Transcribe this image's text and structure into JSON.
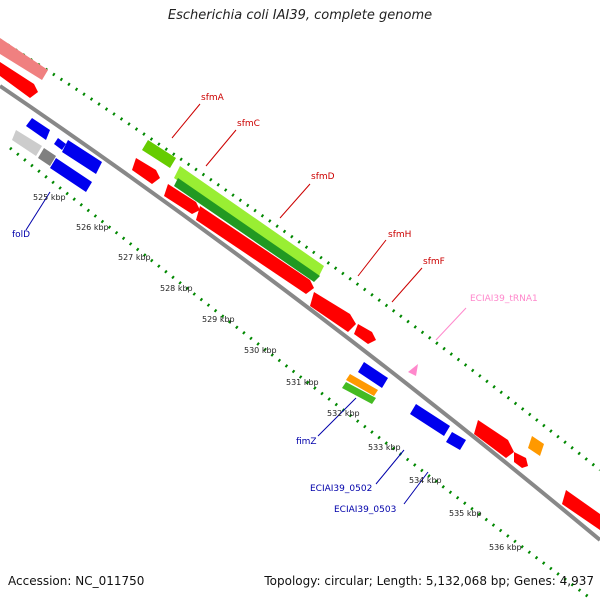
{
  "title": "Escherichia coli IAI39, complete genome",
  "accession": "Accession: NC_011750",
  "summary": "Topology: circular; Length: 5,132,068 bp; Genes: 4,937",
  "colors": {
    "cds": "#ff0000",
    "cds_blue": "#0000ee",
    "highlight_green": "#66cc00",
    "orange": "#ff9900",
    "trna_pink": "#ff88cc",
    "backbone": "#808080",
    "ticks": "#008800",
    "label_red": "#cc0000",
    "label_blue": "#0000aa"
  },
  "ticks": [
    "525 kbp",
    "526 kbp",
    "527 kbp",
    "528 kbp",
    "529 kbp",
    "530 kbp",
    "531 kbp",
    "532 kbp",
    "533 kbp",
    "534 kbp",
    "535 kbp",
    "536 kbp"
  ],
  "gene_labels": [
    {
      "name": "sfmA",
      "color": "label_red"
    },
    {
      "name": "sfmC",
      "color": "label_red"
    },
    {
      "name": "sfmD",
      "color": "label_red"
    },
    {
      "name": "sfmH",
      "color": "label_red"
    },
    {
      "name": "sfmF",
      "color": "label_red"
    },
    {
      "name": "ECIAI39_tRNA1",
      "color": "trna_pink"
    },
    {
      "name": "folD",
      "color": "label_blue"
    },
    {
      "name": "fimZ",
      "color": "label_blue"
    },
    {
      "name": "ECIAI39_0502",
      "color": "label_blue"
    },
    {
      "name": "ECIAI39_0503",
      "color": "label_blue"
    }
  ]
}
